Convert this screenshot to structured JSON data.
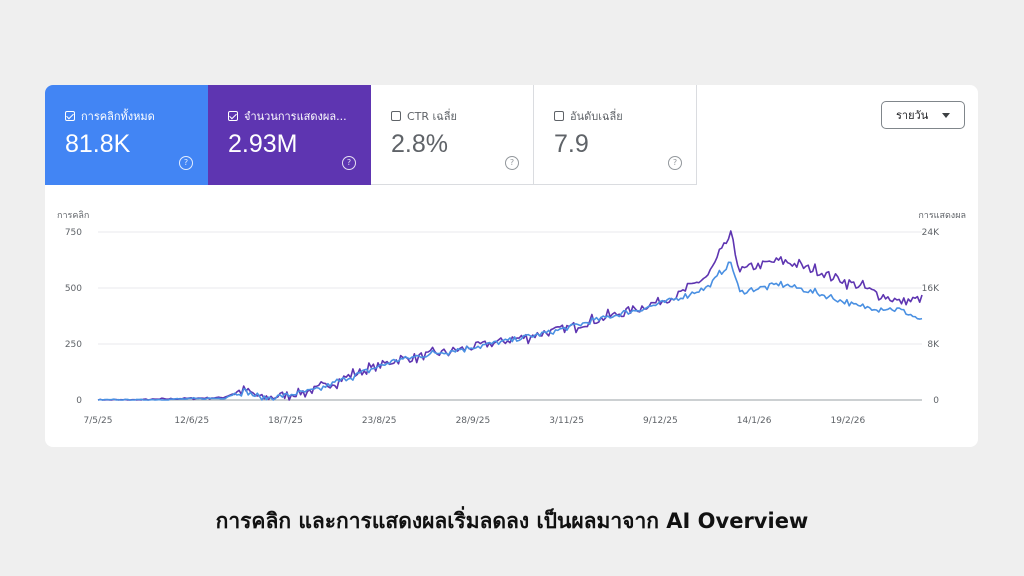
{
  "tiles": [
    {
      "label": "การคลิกทั้งหมด",
      "value": "81.8K",
      "checked": true
    },
    {
      "label": "จำนวนการแสดงผล...",
      "value": "2.93M",
      "checked": true
    },
    {
      "label": "CTR เฉลี่ย",
      "value": "2.8%",
      "checked": false
    },
    {
      "label": "อันดับเฉลี่ย",
      "value": "7.9",
      "checked": false
    }
  ],
  "range_select": {
    "label": "รายวัน"
  },
  "help_glyph": "?",
  "caption": "การคลิก และการแสดงผลเริ่มลดลง เป็นผลมาจาก AI Overview",
  "chart_data": {
    "type": "line",
    "left_axis_label": "การคลิก",
    "right_axis_label": "การแสดงผล",
    "left_ticks": [
      "750",
      "500",
      "250",
      "0"
    ],
    "right_ticks": [
      "24K",
      "16K",
      "8K",
      "0"
    ],
    "left_ylim": [
      0,
      750
    ],
    "right_ylim": [
      0,
      24000
    ],
    "x_ticks": [
      "7/5/25",
      "12/6/25",
      "18/7/25",
      "23/8/25",
      "28/9/25",
      "3/11/25",
      "9/12/25",
      "14/1/26",
      "19/2/26"
    ],
    "colors": {
      "clicks": "#4a90e2",
      "impressions": "#5e35b1"
    },
    "series": [
      {
        "name": "การคลิก",
        "axis": "left",
        "anchors": [
          [
            0,
            0
          ],
          [
            18,
            0
          ],
          [
            36,
            4
          ],
          [
            55,
            8
          ],
          [
            64,
            42
          ],
          [
            72,
            5
          ],
          [
            82,
            20
          ],
          [
            96,
            45
          ],
          [
            110,
            100
          ],
          [
            130,
            175
          ],
          [
            152,
            215
          ],
          [
            175,
            255
          ],
          [
            200,
            305
          ],
          [
            220,
            360
          ],
          [
            240,
            410
          ],
          [
            255,
            455
          ],
          [
            268,
            505
          ],
          [
            278,
            615
          ],
          [
            282,
            480
          ],
          [
            300,
            520
          ],
          [
            318,
            470
          ],
          [
            335,
            415
          ],
          [
            352,
            405
          ],
          [
            362,
            355
          ]
        ],
        "noise": [
          6,
          22
        ]
      },
      {
        "name": "การแสดงผล",
        "axis": "right",
        "anchors": [
          [
            0,
            0
          ],
          [
            18,
            0
          ],
          [
            36,
            200
          ],
          [
            55,
            350
          ],
          [
            64,
            1500
          ],
          [
            72,
            250
          ],
          [
            82,
            700
          ],
          [
            96,
            1500
          ],
          [
            110,
            3400
          ],
          [
            130,
            5600
          ],
          [
            152,
            6800
          ],
          [
            175,
            8200
          ],
          [
            200,
            9800
          ],
          [
            220,
            11500
          ],
          [
            240,
            13400
          ],
          [
            255,
            15000
          ],
          [
            268,
            17800
          ],
          [
            278,
            23600
          ],
          [
            282,
            18500
          ],
          [
            300,
            20000
          ],
          [
            318,
            18200
          ],
          [
            335,
            16200
          ],
          [
            352,
            14000
          ],
          [
            362,
            14500
          ]
        ],
        "noise": [
          200,
          1200
        ]
      }
    ]
  }
}
